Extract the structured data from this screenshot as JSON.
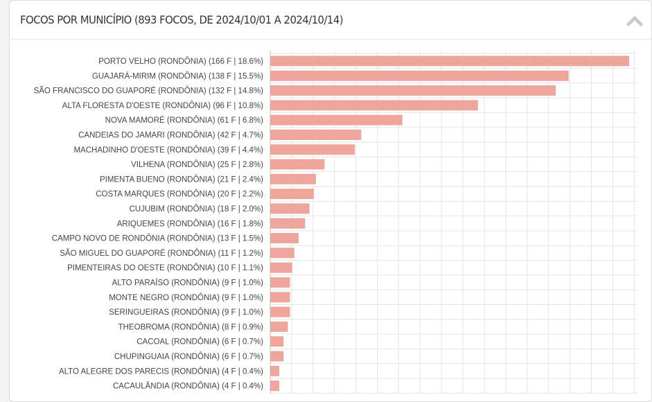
{
  "header": {
    "title": "FOCOS POR MUNICÍPIO (893 FOCOS, DE 2024/10/01 A 2024/10/14)",
    "collapse_icon": "chevron-up-icon"
  },
  "colors": {
    "bar": "#eea59c",
    "grid": "#e4e4e4",
    "axis": "#bdbdbd",
    "collapse_icon": "#c8c8c8"
  },
  "chart_data": {
    "type": "bar",
    "orientation": "horizontal",
    "title": "",
    "xlabel": "",
    "ylabel": "",
    "grid": true,
    "xlim": [
      0,
      170
    ],
    "categories": [
      "PORTO VELHO (RONDÔNIA) (166 F | 18.6%)",
      "GUAJARÁ-MIRIM (RONDÔNIA) (138 F | 15.5%)",
      "SÃO FRANCISCO DO GUAPORÉ (RONDÔNIA) (132 F | 14.8%)",
      "ALTA FLORESTA D'OESTE (RONDÔNIA) (96 F | 10.8%)",
      "NOVA MAMORÉ (RONDÔNIA) (61 F | 6.8%)",
      "CANDEIAS DO JAMARI (RONDÔNIA) (42 F | 4.7%)",
      "MACHADINHO D'OESTE (RONDÔNIA) (39 F | 4.4%)",
      "VILHENA (RONDÔNIA) (25 F | 2.8%)",
      "PIMENTA BUENO (RONDÔNIA) (21 F | 2.4%)",
      "COSTA MARQUES (RONDÔNIA) (20 F | 2.2%)",
      "CUJUBIM (RONDÔNIA) (18 F | 2.0%)",
      "ARIQUEMES (RONDÔNIA) (16 F | 1.8%)",
      "CAMPO NOVO DE RONDÔNIA (RONDÔNIA) (13 F | 1.5%)",
      "SÃO MIGUEL DO GUAPORÉ (RONDÔNIA) (11 F | 1.2%)",
      "PIMENTEIRAS DO OESTE (RONDÔNIA) (10 F | 1.1%)",
      "ALTO PARAÍSO (RONDÔNIA) (9 F | 1.0%)",
      "MONTE NEGRO (RONDÔNIA) (9 F | 1.0%)",
      "SERINGUEIRAS (RONDÔNIA) (9 F | 1.0%)",
      "THEOBROMA (RONDÔNIA) (8 F | 0.9%)",
      "CACOAL (RONDÔNIA) (6 F | 0.7%)",
      "CHUPINGUAIA (RONDÔNIA) (6 F | 0.7%)",
      "ALTO ALEGRE DOS PARECIS (RONDÔNIA) (4 F | 0.4%)",
      "CACAULÂNDIA (RONDÔNIA) (4 F | 0.4%)"
    ],
    "values": [
      166,
      138,
      132,
      96,
      61,
      42,
      39,
      25,
      21,
      20,
      18,
      16,
      13,
      11,
      10,
      9,
      9,
      9,
      8,
      6,
      6,
      4,
      4
    ]
  }
}
